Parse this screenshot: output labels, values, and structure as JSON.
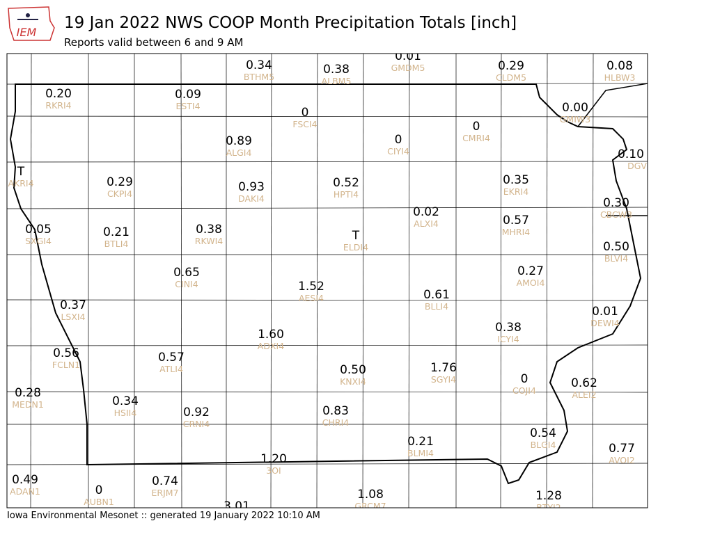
{
  "header": {
    "logo_text": "IEM",
    "title": "19 Jan 2022 NWS COOP Month Precipitation Totals [inch]",
    "subtitle": "Reports valid between 6 and 9 AM"
  },
  "stations": [
    {
      "value": "0.34",
      "id": "BTHM5"
    },
    {
      "value": "0.38",
      "id": "ALBM5"
    },
    {
      "value": "0.01",
      "id": "GMDM5"
    },
    {
      "value": "0.29",
      "id": "CLDM5"
    },
    {
      "value": "0.08",
      "id": "HLBW3"
    },
    {
      "value": "0.20",
      "id": "RKRI4"
    },
    {
      "value": "0.09",
      "id": "ESTI4"
    },
    {
      "value": "0",
      "id": "FSCI4"
    },
    {
      "value": "0.00",
      "id": "GMIW3"
    },
    {
      "value": "0",
      "id": "CMRI4"
    },
    {
      "value": "0.89",
      "id": "ALGI4"
    },
    {
      "value": "0",
      "id": "CIYI4"
    },
    {
      "value": "0.10",
      "id": "DGV"
    },
    {
      "value": "T",
      "id": "AKRI4"
    },
    {
      "value": "0.29",
      "id": "CKPI4"
    },
    {
      "value": "0.52",
      "id": "HPTI4"
    },
    {
      "value": "0.93",
      "id": "DAKI4"
    },
    {
      "value": "0.35",
      "id": "EKRI4"
    },
    {
      "value": "0.30",
      "id": "CBCW3"
    },
    {
      "value": "0.02",
      "id": "ALXI4"
    },
    {
      "value": "0.05",
      "id": "SXGI4"
    },
    {
      "value": "0.21",
      "id": "BTLI4"
    },
    {
      "value": "0.38",
      "id": "RKWI4"
    },
    {
      "value": "0.57",
      "id": "MHRI4"
    },
    {
      "value": "T",
      "id": "ELDI4"
    },
    {
      "value": "0.50",
      "id": "BLVI4"
    },
    {
      "value": "0.65",
      "id": "CINI4"
    },
    {
      "value": "0.27",
      "id": "AMOI4"
    },
    {
      "value": "1.52",
      "id": "AESI4"
    },
    {
      "value": "0.61",
      "id": "BLLI4"
    },
    {
      "value": "0.37",
      "id": "LSXI4"
    },
    {
      "value": "0.01",
      "id": "DEWI4"
    },
    {
      "value": "0.38",
      "id": "ICYI4"
    },
    {
      "value": "1.60",
      "id": "ADXI4"
    },
    {
      "value": "0.56",
      "id": "FCLN1"
    },
    {
      "value": "0.57",
      "id": "ATLI4"
    },
    {
      "value": "0.50",
      "id": "KNXI4"
    },
    {
      "value": "1.76",
      "id": "SGYI4"
    },
    {
      "value": "0",
      "id": "COJI4"
    },
    {
      "value": "0.62",
      "id": "ALEI2"
    },
    {
      "value": "0.28",
      "id": "MEDN1"
    },
    {
      "value": "0.34",
      "id": "HSII4"
    },
    {
      "value": "0.92",
      "id": "CRNI4"
    },
    {
      "value": "0.83",
      "id": "CHRI4"
    },
    {
      "value": "0.21",
      "id": "BLMI4"
    },
    {
      "value": "0.54",
      "id": "BLGI4"
    },
    {
      "value": "0.77",
      "id": "AVOI2"
    },
    {
      "value": "1.20",
      "id": "3OI"
    },
    {
      "value": "0.49",
      "id": "ADAN1"
    },
    {
      "value": "0",
      "id": "AUBN1"
    },
    {
      "value": "0.74",
      "id": "ERJM7"
    },
    {
      "value": "1.08",
      "id": "GRCM7"
    },
    {
      "value": "1.28",
      "id": "BTYI2"
    },
    {
      "value": "3.01"
    }
  ],
  "footer": "Iowa Environmental Mesonet :: generated 19 January 2022 10:10 AM"
}
